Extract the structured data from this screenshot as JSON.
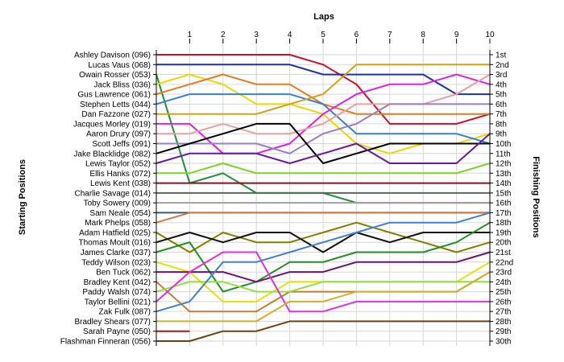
{
  "chart_data": {
    "type": "line",
    "title": "",
    "xlabel": "Laps",
    "ylabel_left": "Starting Positions",
    "ylabel_right": "Finishing Positions",
    "x_ticks": [
      "1",
      "2",
      "3",
      "4",
      "5",
      "6",
      "7",
      "8",
      "9",
      "10"
    ],
    "finishing_labels": [
      "1st",
      "2nd",
      "3rd",
      "4th",
      "5th",
      "6th",
      "7th",
      "8th",
      "9th",
      "10th",
      "11th",
      "12th",
      "13th",
      "14th",
      "15th",
      "16th",
      "17th",
      "18th",
      "19th",
      "20th",
      "21st",
      "22nd",
      "23rd",
      "24th",
      "25th",
      "26th",
      "27th",
      "28th",
      "29th",
      "30th"
    ],
    "grid": true,
    "series": [
      {
        "name": "Ashley Davison (096)",
        "color": "#c8102e",
        "positions": [
          1,
          1,
          1,
          1,
          1,
          2,
          4,
          8,
          8,
          8,
          7
        ]
      },
      {
        "name": "Lucas Vaus (068)",
        "color": "#1f2fa8",
        "positions": [
          2,
          2,
          2,
          2,
          2,
          3,
          3,
          3,
          3,
          5,
          5
        ]
      },
      {
        "name": "Owain Rosser (053)",
        "color": "#1e8f3a",
        "positions": [
          3,
          14,
          13,
          15,
          15,
          15,
          16,
          16,
          16,
          16,
          16
        ]
      },
      {
        "name": "Jack Bliss (036)",
        "color": "#e6d800",
        "positions": [
          4,
          3,
          4,
          6,
          6,
          7,
          10,
          11,
          10,
          10,
          9
        ]
      },
      {
        "name": "Gus Lawrence (061)",
        "color": "#e07b20",
        "positions": [
          5,
          4,
          3,
          4,
          4,
          6,
          7,
          7,
          7,
          7,
          7
        ]
      },
      {
        "name": "Stephen Letts (044)",
        "color": "#3a7fd0",
        "positions": [
          6,
          5,
          5,
          5,
          5,
          6,
          9,
          9,
          9,
          9,
          10
        ]
      },
      {
        "name": "Dan Fazzone (027)",
        "color": "#d4a017",
        "positions": [
          7,
          7,
          7,
          7,
          6,
          5,
          2,
          2,
          2,
          2,
          2
        ]
      },
      {
        "name": "Jacques Morley (019)",
        "color": "#e020e0",
        "positions": [
          8,
          8,
          11,
          11,
          10,
          7,
          5,
          4,
          4,
          3,
          4
        ]
      },
      {
        "name": "Aaron Drury (097)",
        "color": "#e8a0a0",
        "positions": [
          9,
          9,
          8,
          9,
          9,
          8,
          6,
          6,
          6,
          5,
          3
        ]
      },
      {
        "name": "Scott Jeffs (091)",
        "color": "#9a7fc0",
        "positions": [
          10,
          10,
          10,
          10,
          11,
          9,
          8,
          6,
          6,
          6,
          6
        ]
      },
      {
        "name": "Jake Blacklidge (082)",
        "color": "#000000",
        "positions": [
          11,
          10,
          9,
          8,
          8,
          12,
          11,
          10,
          10,
          10,
          10
        ]
      },
      {
        "name": "Lewis Taylor (052)",
        "color": "#6a1b9a",
        "positions": [
          12,
          11,
          11,
          11,
          12,
          11,
          10,
          12,
          12,
          12,
          9
        ]
      },
      {
        "name": "Ellis Hanks (072)",
        "color": "#7ed321",
        "positions": [
          13,
          13,
          12,
          13,
          13,
          13,
          13,
          13,
          13,
          13,
          12
        ]
      },
      {
        "name": "Lewis Kent (038)",
        "color": "#8b1020",
        "positions": [
          14,
          14,
          14,
          14,
          14,
          14,
          14,
          14,
          14,
          14,
          14
        ]
      },
      {
        "name": "Charlie Savage (014)",
        "color": "#556b55",
        "positions": [
          15,
          15,
          15,
          15,
          15,
          15,
          15,
          15,
          15,
          15,
          15
        ]
      },
      {
        "name": "Toby Sowery (009)",
        "color": "#a0a0a0",
        "positions": [
          16,
          16,
          16,
          16,
          16,
          16,
          16,
          16,
          16,
          16,
          16
        ]
      },
      {
        "name": "Sam Neale (054)",
        "color": "#3a5a70",
        "positions": [
          17,
          17,
          17,
          17,
          17,
          17,
          17,
          17,
          17,
          17,
          17
        ]
      },
      {
        "name": "Mark Phelps (058)",
        "color": "#d07a40",
        "positions": [
          18,
          17,
          17,
          17,
          17,
          17,
          17,
          17,
          17,
          17,
          17
        ]
      },
      {
        "name": "Adam Hatfield (025)",
        "color": "#808000",
        "positions": [
          19,
          21,
          19,
          20,
          20,
          19,
          18,
          19,
          20,
          21,
          20
        ]
      },
      {
        "name": "Thomas Moult (016)",
        "color": "#101010",
        "positions": [
          20,
          19,
          20,
          19,
          19,
          21,
          19,
          20,
          19,
          19,
          19
        ]
      },
      {
        "name": "James Clarke (037)",
        "color": "#208f20",
        "positions": [
          21,
          20,
          25,
          24,
          22,
          22,
          21,
          21,
          21,
          20,
          18
        ]
      },
      {
        "name": "Teddy Wilson (023)",
        "color": "#e8e000",
        "positions": [
          22,
          23,
          26,
          26,
          24,
          24,
          24,
          24,
          24,
          24,
          22
        ]
      },
      {
        "name": "Ben Tuck (062)",
        "color": "#701070",
        "positions": [
          23,
          23,
          23,
          24,
          23,
          23,
          22,
          22,
          22,
          22,
          21
        ]
      },
      {
        "name": "Bradley Kent (042)",
        "color": "#c08030",
        "positions": [
          24,
          27,
          27,
          27,
          25,
          25,
          25,
          25,
          25,
          25,
          23
        ]
      },
      {
        "name": "Paddy Walsh (074)",
        "color": "#90e040",
        "positions": [
          25,
          24,
          24,
          25,
          25,
          24,
          24,
          24,
          24,
          24,
          24
        ]
      },
      {
        "name": "Taylor Bellini (021)",
        "color": "#e030e0",
        "positions": [
          26,
          23,
          21,
          21,
          27,
          27,
          26,
          26,
          26,
          26,
          26
        ]
      },
      {
        "name": "Zak Fulk (087)",
        "color": "#4080d0",
        "positions": [
          27,
          26,
          22,
          22,
          21,
          20,
          19,
          18,
          18,
          18,
          17
        ]
      },
      {
        "name": "Bradley Shears (077)",
        "color": "#d0b030",
        "positions": [
          28,
          28,
          28,
          28,
          26,
          26,
          25,
          25,
          25,
          25,
          23
        ]
      },
      {
        "name": "Sarah Payne (050)",
        "color": "#a01818",
        "positions": [
          29,
          29,
          null,
          null,
          null,
          null,
          null,
          null,
          null,
          null,
          null
        ]
      },
      {
        "name": "Flashman Finneran (056)",
        "color": "#704010",
        "positions": [
          30,
          30,
          29,
          29,
          28,
          28,
          28,
          28,
          28,
          28,
          28
        ]
      }
    ]
  }
}
